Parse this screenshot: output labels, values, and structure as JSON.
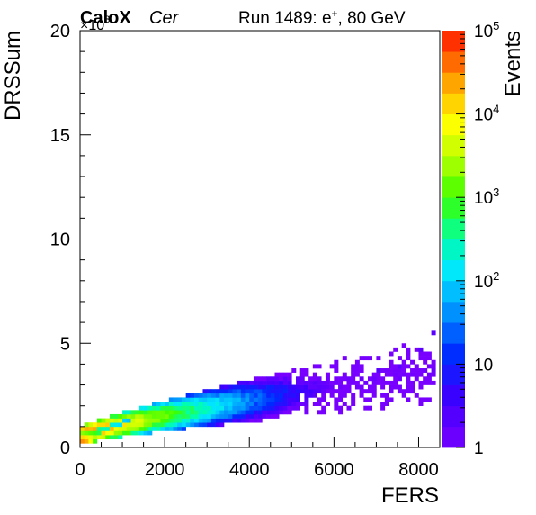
{
  "header": {
    "experiment": "CaloX",
    "channel": "Cer",
    "run_label": "Run 1489: e",
    "run_sup": "+",
    "run_suffix": ", 80 GeV"
  },
  "chart_data": {
    "type": "heatmap",
    "title": "",
    "xlabel": "FERS",
    "ylabel": "DRSSum",
    "zlabel": "Events",
    "y_multiplier": "×10",
    "y_multiplier_exp": "3",
    "xlim": [
      0,
      8500
    ],
    "ylim": [
      0,
      20
    ],
    "zlim": [
      1,
      100000
    ],
    "z_scale": "log",
    "x_ticks": [
      "0",
      "2000",
      "4000",
      "6000",
      "8000"
    ],
    "y_ticks": [
      "0",
      "5",
      "10",
      "15",
      "20"
    ],
    "z_tick_labels": [
      {
        "value": 1,
        "base": "1",
        "exp": ""
      },
      {
        "value": 10,
        "base": "10",
        "exp": ""
      },
      {
        "value": 100,
        "base": "10",
        "exp": "2"
      },
      {
        "value": 1000,
        "base": "10",
        "exp": "3"
      },
      {
        "value": 10000,
        "base": "10",
        "exp": "4"
      },
      {
        "value": 100000,
        "base": "10",
        "exp": "5"
      }
    ],
    "bin_width_x": 100,
    "bin_width_y": 0.2,
    "grid": false,
    "legend": "colorbar-right",
    "band": {
      "x_start": 0,
      "x_end": 8300,
      "y_at_start": 0.5,
      "y_at_end": 3.6,
      "peak_counts_near_origin": 50000
    },
    "cells": [
      [
        0,
        0.2,
        30000
      ],
      [
        100,
        0.2,
        20000
      ],
      [
        200,
        0.2,
        8000
      ],
      [
        0,
        0.4,
        12000
      ],
      [
        100,
        0.4,
        10000
      ],
      [
        200,
        0.4,
        6000
      ],
      [
        300,
        0.4,
        3000
      ],
      [
        0,
        0.6,
        2000
      ],
      [
        100,
        0.6,
        1500
      ],
      [
        200,
        0.6,
        1200
      ],
      [
        300,
        0.6,
        900
      ],
      [
        400,
        0.6,
        600
      ],
      [
        400,
        0.8,
        400
      ],
      [
        500,
        0.8,
        300
      ],
      [
        600,
        0.8,
        250
      ],
      [
        700,
        1.0,
        200
      ],
      [
        800,
        1.0,
        150
      ],
      [
        900,
        1.0,
        120
      ],
      [
        1000,
        1.2,
        100
      ],
      [
        1100,
        1.2,
        80
      ],
      [
        7000,
        3.6,
        2
      ],
      [
        7500,
        3.8,
        2
      ],
      [
        8000,
        4.6,
        2
      ],
      [
        8300,
        5.4,
        2
      ]
    ]
  }
}
